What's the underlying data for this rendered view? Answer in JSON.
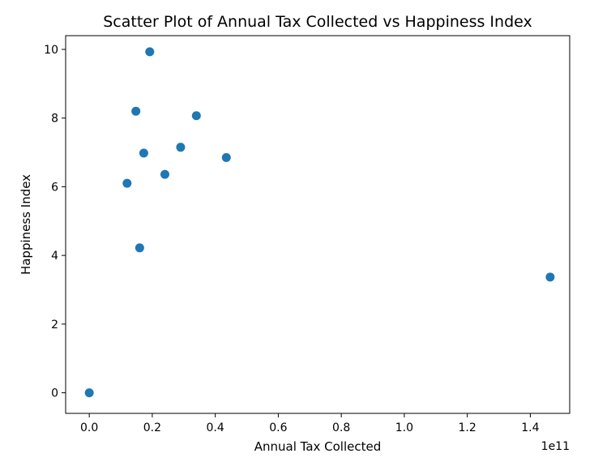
{
  "chart_data": {
    "type": "scatter",
    "title": "Scatter Plot of Annual Tax Collected vs Happiness Index",
    "xlabel": "Annual Tax Collected",
    "ylabel": "Happiness Index",
    "x_offset_label": "1e11",
    "xlim": [
      -0.075,
      1.525
    ],
    "ylim": [
      -0.6,
      10.4
    ],
    "x_ticks": [
      0.0,
      0.2,
      0.4,
      0.6,
      0.8,
      1.0,
      1.2,
      1.4
    ],
    "x_tick_labels": [
      "0.0",
      "0.2",
      "0.4",
      "0.6",
      "0.8",
      "1.0",
      "1.2",
      "1.4"
    ],
    "y_ticks": [
      0,
      2,
      4,
      6,
      8,
      10
    ],
    "y_tick_labels": [
      "0",
      "2",
      "4",
      "6",
      "8",
      "10"
    ],
    "marker_color": "#1f77b4",
    "points": [
      {
        "x": 0.0,
        "y": 0.0
      },
      {
        "x": 0.12,
        "y": 6.1
      },
      {
        "x": 0.148,
        "y": 8.2
      },
      {
        "x": 0.16,
        "y": 4.22
      },
      {
        "x": 0.173,
        "y": 6.98
      },
      {
        "x": 0.192,
        "y": 9.93
      },
      {
        "x": 0.24,
        "y": 6.36
      },
      {
        "x": 0.29,
        "y": 7.15
      },
      {
        "x": 0.34,
        "y": 8.07
      },
      {
        "x": 0.435,
        "y": 6.85
      },
      {
        "x": 1.463,
        "y": 3.37
      }
    ]
  }
}
